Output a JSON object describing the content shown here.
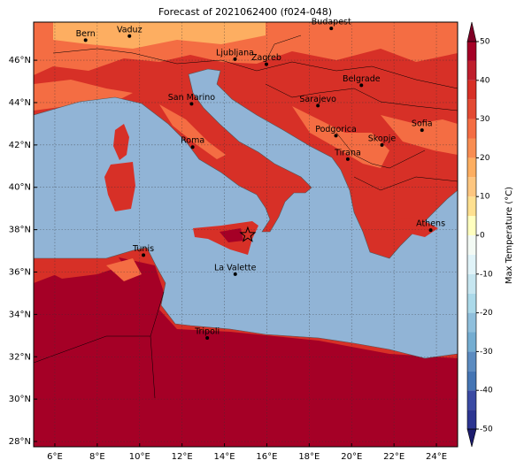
{
  "chart_data": {
    "type": "map",
    "title": "Forecast of 2021062400 (f024-048)",
    "xlim": [
      5,
      25
    ],
    "ylim": [
      27.75,
      47.8
    ],
    "xticks": [
      {
        "value": 6,
        "label": "6°E"
      },
      {
        "value": 8,
        "label": "8°E"
      },
      {
        "value": 10,
        "label": "10°E"
      },
      {
        "value": 12,
        "label": "12°E"
      },
      {
        "value": 14,
        "label": "14°E"
      },
      {
        "value": 16,
        "label": "16°E"
      },
      {
        "value": 18,
        "label": "18°E"
      },
      {
        "value": 20,
        "label": "20°E"
      },
      {
        "value": 22,
        "label": "22°E"
      },
      {
        "value": 24,
        "label": "24°E"
      }
    ],
    "yticks": [
      {
        "value": 28,
        "label": "28°N"
      },
      {
        "value": 30,
        "label": "30°N"
      },
      {
        "value": 32,
        "label": "32°N"
      },
      {
        "value": 34,
        "label": "34°N"
      },
      {
        "value": 36,
        "label": "36°N"
      },
      {
        "value": 38,
        "label": "38°N"
      },
      {
        "value": 40,
        "label": "40°N"
      },
      {
        "value": 42,
        "label": "42°N"
      },
      {
        "value": 44,
        "label": "44°N"
      },
      {
        "value": 46,
        "label": "46°N"
      }
    ],
    "grid": true,
    "cities": [
      {
        "name": "Bern",
        "lon": 7.45,
        "lat": 46.95
      },
      {
        "name": "Vaduz",
        "lon": 9.52,
        "lat": 47.14
      },
      {
        "name": "Budapest",
        "lon": 19.04,
        "lat": 47.5
      },
      {
        "name": "Ljubljana",
        "lon": 14.5,
        "lat": 46.05
      },
      {
        "name": "Zagreb",
        "lon": 15.98,
        "lat": 45.81
      },
      {
        "name": "Belgrade",
        "lon": 20.46,
        "lat": 44.82
      },
      {
        "name": "San Marino",
        "lon": 12.45,
        "lat": 43.94
      },
      {
        "name": "Sarajevo",
        "lon": 18.41,
        "lat": 43.86
      },
      {
        "name": "Sofia",
        "lon": 23.32,
        "lat": 42.7
      },
      {
        "name": "Podgorica",
        "lon": 19.26,
        "lat": 42.44
      },
      {
        "name": "Skopje",
        "lon": 21.43,
        "lat": 42.0
      },
      {
        "name": "Roma",
        "lon": 12.5,
        "lat": 41.9
      },
      {
        "name": "Tirana",
        "lon": 19.82,
        "lat": 41.33
      },
      {
        "name": "Athens",
        "lon": 23.73,
        "lat": 37.98
      },
      {
        "name": "Tunis",
        "lon": 10.18,
        "lat": 36.8
      },
      {
        "name": "La Valette",
        "lon": 14.51,
        "lat": 35.9
      },
      {
        "name": "Tripoli",
        "lon": 13.19,
        "lat": 32.89
      }
    ],
    "marker": {
      "lon": 15.1,
      "lat": 37.75
    },
    "colorbar": {
      "label": "Max Temperature (°C)",
      "lim": [
        -50,
        50
      ],
      "ticks": [
        -50,
        -40,
        -30,
        -20,
        -10,
        0,
        10,
        20,
        30,
        40,
        50
      ],
      "colors": [
        "#2c3591",
        "#3a4aa3",
        "#4575b4",
        "#5b8bc0",
        "#74add1",
        "#8fbfdc",
        "#abd9e9",
        "#c6e6f0",
        "#e0f3f8",
        "#f3faf4",
        "#ffffbf",
        "#fee090",
        "#fdc680",
        "#fdae61",
        "#f88d52",
        "#f46d43",
        "#e34a33",
        "#d73027",
        "#bf1e2d",
        "#a50026"
      ],
      "under_color": "#1c1c6e",
      "over_color": "#7f0026"
    }
  }
}
